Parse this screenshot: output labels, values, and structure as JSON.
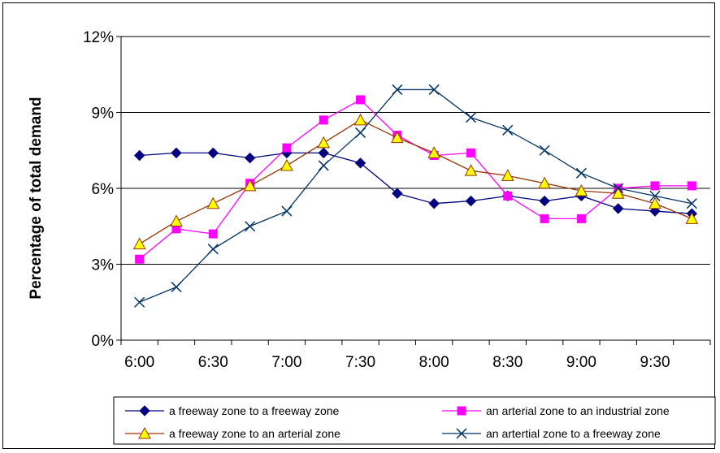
{
  "chart_data": {
    "type": "line",
    "ylabel": "Percentage of total demand",
    "xlabel": "",
    "ylim": [
      0,
      12
    ],
    "yticks": [
      "0%",
      "3%",
      "6%",
      "9%",
      "12%"
    ],
    "xtick_labels": [
      "6:00",
      "6:30",
      "7:00",
      "7:30",
      "8:00",
      "8:30",
      "9:00",
      "9:30"
    ],
    "x": [
      "6:00",
      "6:15",
      "6:30",
      "6:45",
      "7:00",
      "7:15",
      "7:30",
      "7:45",
      "8:00",
      "8:15",
      "8:30",
      "8:45",
      "9:00",
      "9:15",
      "9:30",
      "9:45"
    ],
    "grid": "horizontal",
    "legend_position": "bottom",
    "series": [
      {
        "name": "a freeway zone to a freeway zone",
        "color": "#000080",
        "marker": "diamond",
        "values": [
          7.3,
          7.4,
          7.4,
          7.2,
          7.4,
          7.4,
          7.0,
          5.8,
          5.4,
          5.5,
          5.7,
          5.5,
          5.7,
          5.2,
          5.1,
          5.0
        ]
      },
      {
        "name": "an arterial zone to an industrial zone",
        "color": "#FF00FF",
        "marker": "square",
        "values": [
          3.2,
          4.4,
          4.2,
          6.2,
          7.6,
          8.7,
          9.5,
          8.1,
          7.3,
          7.4,
          5.7,
          4.8,
          4.8,
          6.0,
          6.1,
          6.1
        ]
      },
      {
        "name": "a freeway zone to an arterial zone",
        "color": "#993300",
        "marker": "triangle",
        "values": [
          3.8,
          4.7,
          5.4,
          6.1,
          6.9,
          7.8,
          8.7,
          8.0,
          7.4,
          6.7,
          6.5,
          6.2,
          5.9,
          5.8,
          5.4,
          4.8
        ]
      },
      {
        "name": "an artertial zone to a freeway zone",
        "color": "#003366",
        "marker": "x",
        "values": [
          1.5,
          2.1,
          3.6,
          4.5,
          5.1,
          6.9,
          8.2,
          9.9,
          9.9,
          8.8,
          8.3,
          7.5,
          6.6,
          6.0,
          5.7,
          5.4
        ]
      }
    ]
  }
}
